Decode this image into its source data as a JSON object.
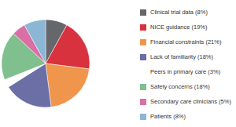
{
  "chart_data": {
    "type": "pie",
    "categories": [
      "Clinical trial data (8%)",
      "NICE guidance (19%)",
      "Financial constraints (21%)",
      "Lack of familiarity (18%)",
      "Peers in primary care (3%)",
      "Safety concerns (18%)",
      "Secondary care clinicians (5%)",
      "Patients (8%)"
    ],
    "values": [
      8,
      19,
      21,
      18,
      3,
      18,
      5,
      8
    ],
    "colors": [
      "#66676b",
      "#d8323f",
      "#f0964c",
      "#6b6fa6",
      "#ffffff",
      "#80bf8e",
      "#d96fa4",
      "#8cb7d4"
    ],
    "legend": "right"
  }
}
